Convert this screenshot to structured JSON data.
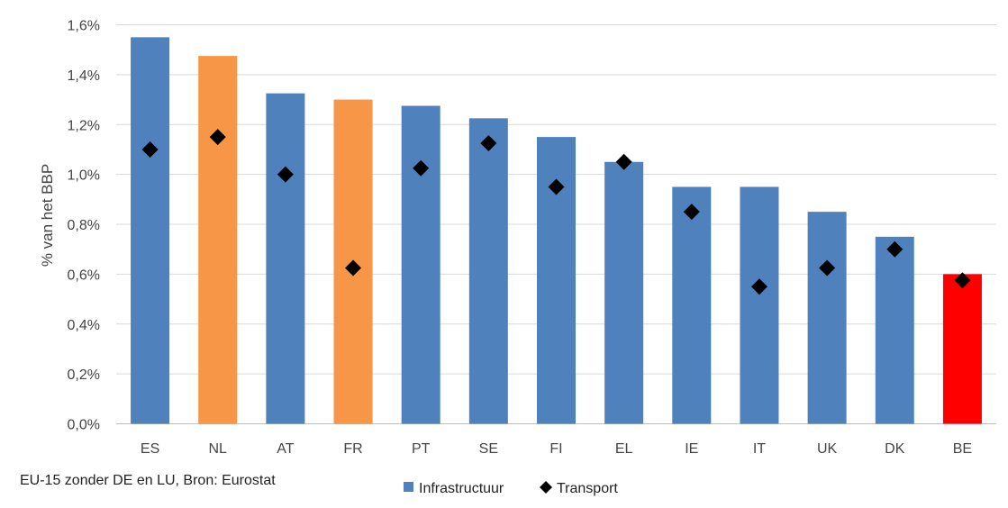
{
  "chart_data": {
    "type": "bar",
    "categories": [
      "ES",
      "NL",
      "AT",
      "FR",
      "PT",
      "SE",
      "FI",
      "EL",
      "IE",
      "IT",
      "UK",
      "DK",
      "BE"
    ],
    "series": [
      {
        "name": "Infrastructuur",
        "kind": "bar",
        "values": [
          1.55,
          1.475,
          1.325,
          1.3,
          1.275,
          1.225,
          1.15,
          1.05,
          0.95,
          0.95,
          0.85,
          0.75,
          0.6
        ],
        "color": "#4F81BD",
        "highlight_colors": {
          "NL": "#F79646",
          "FR": "#F79646",
          "BE": "#FF0000"
        }
      },
      {
        "name": "Transport",
        "kind": "marker",
        "marker": "diamond",
        "values": [
          1.1,
          1.15,
          1.0,
          0.625,
          1.025,
          1.125,
          0.95,
          1.05,
          0.85,
          0.55,
          0.625,
          0.7,
          0.575
        ],
        "color": "#000000"
      }
    ],
    "ylabel": "% van het BBP",
    "xlabel": "",
    "ylim": [
      0,
      1.6
    ],
    "yticks": [
      "0,0%",
      "0,2%",
      "0,4%",
      "0,6%",
      "0,8%",
      "1,0%",
      "1,2%",
      "1,4%",
      "1,6%"
    ],
    "grid": true,
    "legend_position": "bottom-center",
    "source_note": "EU-15 zonder DE en LU, Bron: Eurostat"
  }
}
